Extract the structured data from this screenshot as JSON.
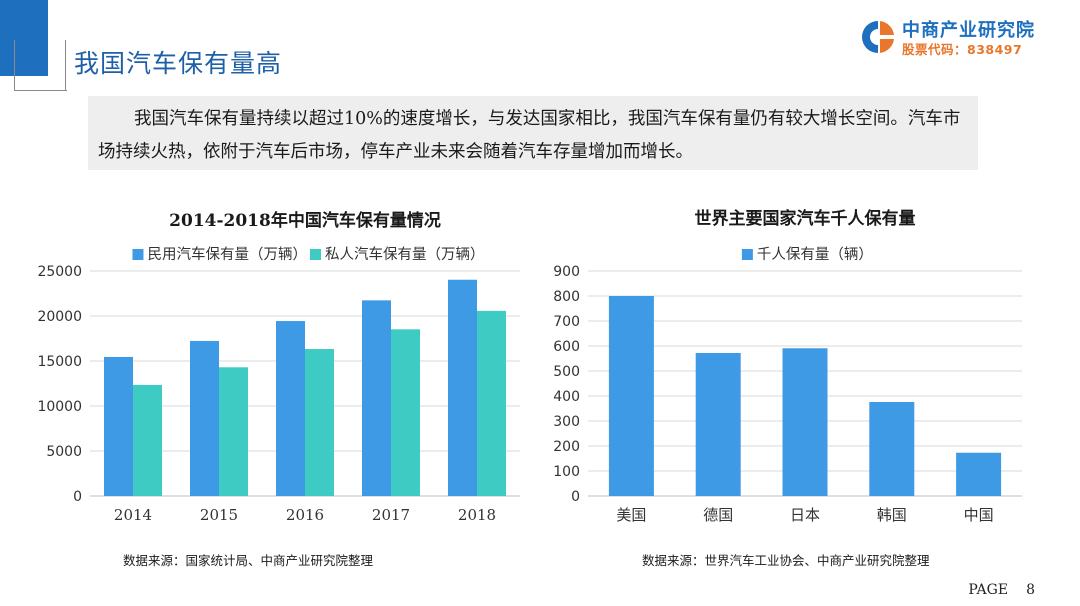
{
  "page_title": "我国汽车保有量高",
  "logo": {
    "name": "中商产业研究院",
    "stock_code": "股票代码：838497",
    "colors": {
      "blue": "#1f6fbf",
      "orange": "#e9772b"
    }
  },
  "intro_text": "我国汽车保有量持续以超过10%的速度增长，与发达国家相比，我国汽车保有量仍有较大增长空间。汽车市场持续火热，依附于汽车后市场，停车产业未来会随着汽车存量增加而增长。",
  "chart_data": [
    {
      "type": "bar",
      "title": "2014-2018年中国汽车保有量情况",
      "categories": [
        "2014",
        "2015",
        "2016",
        "2017",
        "2018"
      ],
      "series": [
        {
          "name": "民用汽车保有量（万辆）",
          "color": "#3f9ae6",
          "values": [
            15450,
            17230,
            19440,
            21740,
            24030
          ]
        },
        {
          "name": "私人汽车保有量（万辆）",
          "color": "#3dcbc4",
          "values": [
            12340,
            14300,
            16330,
            18520,
            20570
          ]
        }
      ],
      "ylim": [
        0,
        25000
      ],
      "yticks": [
        0,
        5000,
        10000,
        15000,
        20000,
        25000
      ],
      "grid": true,
      "legend": "top"
    },
    {
      "type": "bar",
      "title": "世界主要国家汽车千人保有量",
      "categories": [
        "美国",
        "德国",
        "日本",
        "韩国",
        "中国"
      ],
      "series": [
        {
          "name": "千人保有量（辆）",
          "color": "#3f9ae6",
          "values": [
            800,
            572,
            591,
            376,
            173
          ]
        }
      ],
      "ylim": [
        0,
        900
      ],
      "yticks": [
        0,
        100,
        200,
        300,
        400,
        500,
        600,
        700,
        800,
        900
      ],
      "grid": true,
      "legend": "top"
    }
  ],
  "sources": [
    "数据来源：国家统计局、中商产业研究院整理",
    "数据来源：世界汽车工业协会、中商产业研究院整理"
  ],
  "page_label": "PAGE",
  "page_number": "8"
}
